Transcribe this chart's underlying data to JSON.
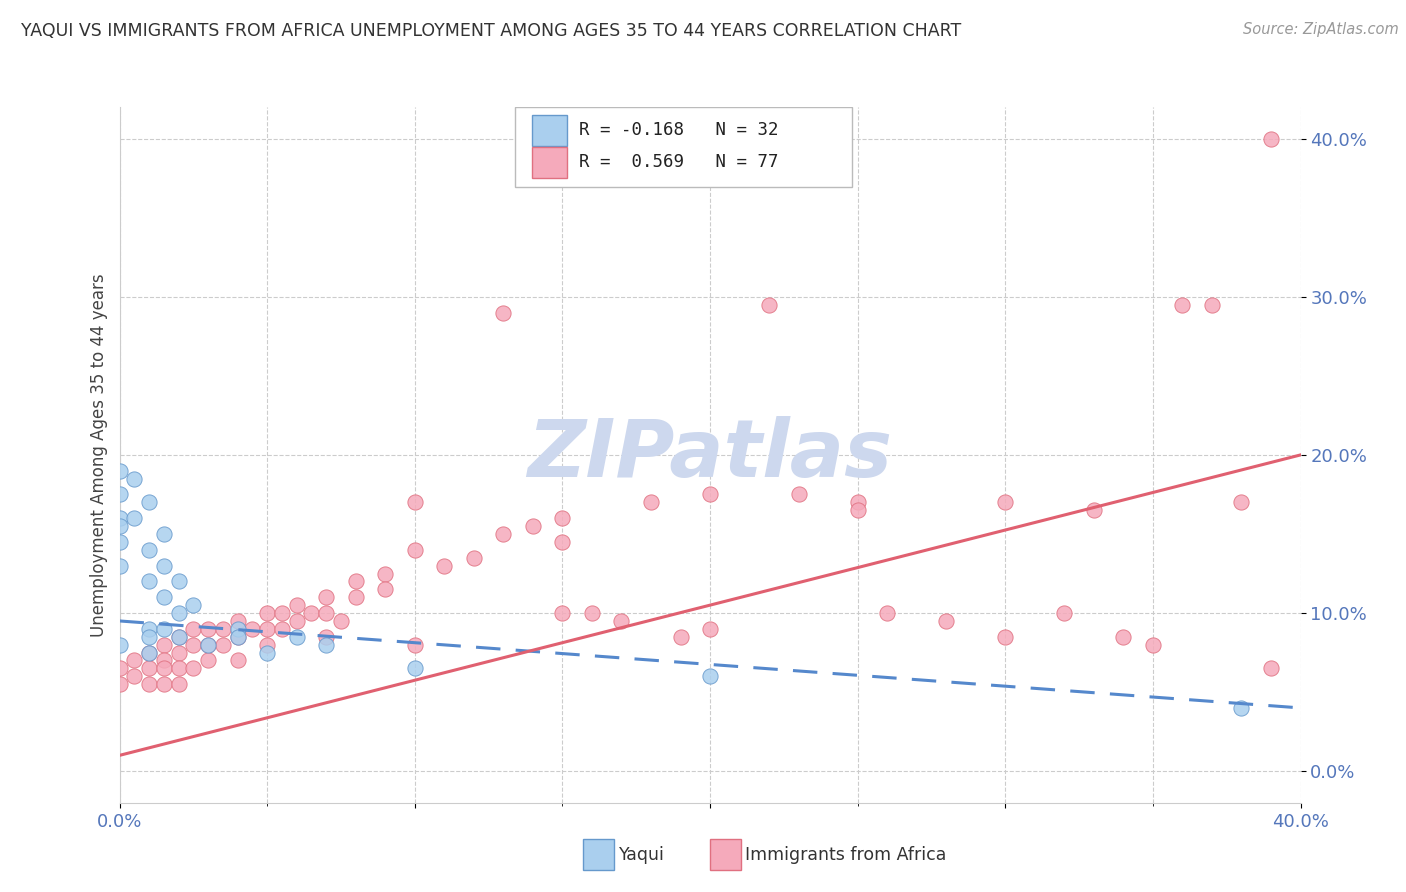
{
  "title": "YAQUI VS IMMIGRANTS FROM AFRICA UNEMPLOYMENT AMONG AGES 35 TO 44 YEARS CORRELATION CHART",
  "source": "Source: ZipAtlas.com",
  "ylabel": "Unemployment Among Ages 35 to 44 years",
  "legend_yaqui_label": "Yaqui",
  "legend_africa_label": "Immigrants from Africa",
  "legend_yaqui_R": "R = -0.168",
  "legend_yaqui_N": "N = 32",
  "legend_africa_R": "R =  0.569",
  "legend_africa_N": "N = 77",
  "yaqui_color": "#aacfee",
  "africa_color": "#f5aabb",
  "yaqui_edge_color": "#6699cc",
  "africa_edge_color": "#e07080",
  "yaqui_line_color": "#5588cc",
  "africa_line_color": "#e06070",
  "watermark_color": "#cdd8ee",
  "background_color": "#ffffff",
  "tick_color": "#5577bb",
  "xlim": [
    0.0,
    0.4
  ],
  "ylim": [
    -0.02,
    0.42
  ],
  "yticks": [
    0.0,
    0.1,
    0.2,
    0.3,
    0.4
  ],
  "ytick_labels": [
    "0.0%",
    "10.0%",
    "20.0%",
    "30.0%",
    "40.0%"
  ],
  "yaqui_points": [
    [
      0.0,
      0.19
    ],
    [
      0.0,
      0.175
    ],
    [
      0.0,
      0.16
    ],
    [
      0.0,
      0.155
    ],
    [
      0.0,
      0.145
    ],
    [
      0.0,
      0.13
    ],
    [
      0.0,
      0.08
    ],
    [
      0.005,
      0.185
    ],
    [
      0.005,
      0.16
    ],
    [
      0.01,
      0.17
    ],
    [
      0.01,
      0.14
    ],
    [
      0.01,
      0.12
    ],
    [
      0.01,
      0.09
    ],
    [
      0.01,
      0.085
    ],
    [
      0.01,
      0.075
    ],
    [
      0.015,
      0.15
    ],
    [
      0.015,
      0.13
    ],
    [
      0.015,
      0.11
    ],
    [
      0.015,
      0.09
    ],
    [
      0.02,
      0.12
    ],
    [
      0.02,
      0.1
    ],
    [
      0.02,
      0.085
    ],
    [
      0.025,
      0.105
    ],
    [
      0.03,
      0.08
    ],
    [
      0.04,
      0.09
    ],
    [
      0.04,
      0.085
    ],
    [
      0.05,
      0.075
    ],
    [
      0.06,
      0.085
    ],
    [
      0.07,
      0.08
    ],
    [
      0.1,
      0.065
    ],
    [
      0.2,
      0.06
    ],
    [
      0.38,
      0.04
    ]
  ],
  "africa_points": [
    [
      0.0,
      0.065
    ],
    [
      0.0,
      0.055
    ],
    [
      0.005,
      0.07
    ],
    [
      0.005,
      0.06
    ],
    [
      0.01,
      0.075
    ],
    [
      0.01,
      0.065
    ],
    [
      0.01,
      0.055
    ],
    [
      0.015,
      0.08
    ],
    [
      0.015,
      0.07
    ],
    [
      0.015,
      0.065
    ],
    [
      0.015,
      0.055
    ],
    [
      0.02,
      0.085
    ],
    [
      0.02,
      0.075
    ],
    [
      0.02,
      0.065
    ],
    [
      0.02,
      0.055
    ],
    [
      0.025,
      0.09
    ],
    [
      0.025,
      0.08
    ],
    [
      0.025,
      0.065
    ],
    [
      0.03,
      0.09
    ],
    [
      0.03,
      0.08
    ],
    [
      0.03,
      0.07
    ],
    [
      0.035,
      0.09
    ],
    [
      0.035,
      0.08
    ],
    [
      0.04,
      0.095
    ],
    [
      0.04,
      0.085
    ],
    [
      0.04,
      0.07
    ],
    [
      0.045,
      0.09
    ],
    [
      0.05,
      0.1
    ],
    [
      0.05,
      0.09
    ],
    [
      0.05,
      0.08
    ],
    [
      0.055,
      0.1
    ],
    [
      0.055,
      0.09
    ],
    [
      0.06,
      0.105
    ],
    [
      0.06,
      0.095
    ],
    [
      0.065,
      0.1
    ],
    [
      0.07,
      0.11
    ],
    [
      0.07,
      0.1
    ],
    [
      0.07,
      0.085
    ],
    [
      0.075,
      0.095
    ],
    [
      0.08,
      0.12
    ],
    [
      0.08,
      0.11
    ],
    [
      0.09,
      0.125
    ],
    [
      0.09,
      0.115
    ],
    [
      0.1,
      0.17
    ],
    [
      0.1,
      0.14
    ],
    [
      0.1,
      0.08
    ],
    [
      0.11,
      0.13
    ],
    [
      0.12,
      0.135
    ],
    [
      0.13,
      0.15
    ],
    [
      0.13,
      0.29
    ],
    [
      0.14,
      0.155
    ],
    [
      0.15,
      0.16
    ],
    [
      0.15,
      0.145
    ],
    [
      0.15,
      0.1
    ],
    [
      0.16,
      0.1
    ],
    [
      0.17,
      0.095
    ],
    [
      0.18,
      0.17
    ],
    [
      0.19,
      0.085
    ],
    [
      0.2,
      0.175
    ],
    [
      0.2,
      0.09
    ],
    [
      0.22,
      0.295
    ],
    [
      0.23,
      0.175
    ],
    [
      0.25,
      0.17
    ],
    [
      0.25,
      0.165
    ],
    [
      0.26,
      0.1
    ],
    [
      0.28,
      0.095
    ],
    [
      0.3,
      0.17
    ],
    [
      0.3,
      0.085
    ],
    [
      0.32,
      0.1
    ],
    [
      0.33,
      0.165
    ],
    [
      0.34,
      0.085
    ],
    [
      0.35,
      0.08
    ],
    [
      0.36,
      0.295
    ],
    [
      0.37,
      0.295
    ],
    [
      0.38,
      0.17
    ],
    [
      0.39,
      0.4
    ],
    [
      0.39,
      0.065
    ]
  ],
  "yaqui_trendline_x": [
    0.0,
    0.4
  ],
  "yaqui_trendline_y": [
    0.095,
    0.04
  ],
  "africa_trendline_x": [
    0.0,
    0.4
  ],
  "africa_trendline_y": [
    0.01,
    0.2
  ]
}
